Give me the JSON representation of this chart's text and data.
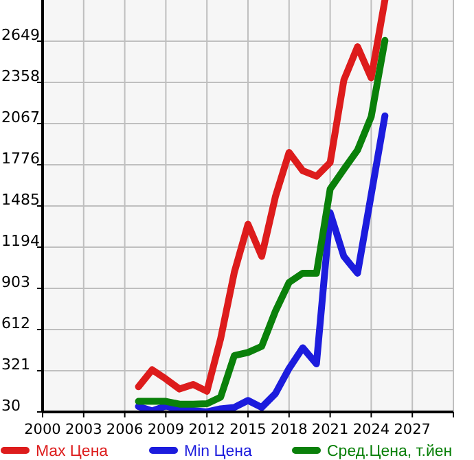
{
  "chart_data": {
    "type": "line",
    "x": [
      2007,
      2008,
      2009,
      2010,
      2011,
      2012,
      2013,
      2014,
      2015,
      2016,
      2017,
      2018,
      2019,
      2020,
      2021,
      2022,
      2023,
      2024,
      2025
    ],
    "series": [
      {
        "name": "Max Цена",
        "color": "#dd1c1c",
        "values": [
          208,
          328,
          263,
          192,
          224,
          176,
          547,
          1016,
          1356,
          1129,
          1550,
          1863,
          1734,
          1695,
          1792,
          2374,
          2610,
          2390,
          2940
        ]
      },
      {
        "name": "Min Цена",
        "color": "#1c1cdd",
        "values": [
          69,
          37,
          72,
          47,
          40,
          30,
          52,
          62,
          111,
          62,
          159,
          337,
          483,
          370,
          1437,
          1129,
          1010,
          1566,
          2122
        ]
      },
      {
        "name": "Сред.Цена, т.йен",
        "color": "#0a800a",
        "values": [
          105,
          105,
          105,
          85,
          85,
          88,
          134,
          428,
          450,
          493,
          741,
          945,
          1010,
          1010,
          1604,
          1744,
          1880,
          2116,
          2655
        ]
      }
    ],
    "xlim": [
      2000,
      2030
    ],
    "xticks": [
      2000,
      2003,
      2006,
      2009,
      2012,
      2015,
      2018,
      2021,
      2024,
      2027
    ],
    "ylim": [
      30,
      2940
    ],
    "yticks": [
      30,
      321,
      612,
      903,
      1194,
      1485,
      1776,
      2067,
      2358,
      2649
    ],
    "grid": true,
    "legend": "bottom",
    "marker": "none",
    "line_style": "solid"
  }
}
